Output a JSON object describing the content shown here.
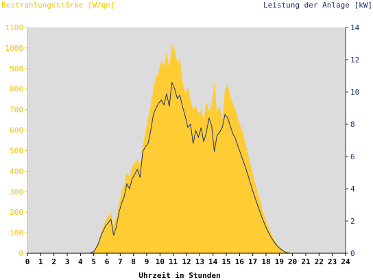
{
  "chart_data": {
    "type": "area",
    "title": "",
    "y_left_label": "Bestrahlungsstärke [W/qm]",
    "y_right_label": "Leistung der Anlage [kW]",
    "xlabel": "Uhrzeit in Stunden",
    "xlim": [
      0,
      24
    ],
    "ylim_left": [
      0,
      1100
    ],
    "ylim_right": [
      0,
      14
    ],
    "x_ticks": [
      "0",
      "1",
      "2",
      "3",
      "4",
      "5",
      "6",
      "7",
      "8",
      "9",
      "10",
      "11",
      "12",
      "13",
      "14",
      "15",
      "16",
      "17",
      "18",
      "19",
      "20",
      "21",
      "22",
      "23",
      "24"
    ],
    "y_left_ticks": [
      "0",
      "100",
      "200",
      "300",
      "400",
      "500",
      "600",
      "700",
      "800",
      "900",
      "1000",
      "1100"
    ],
    "y_right_ticks": [
      "0",
      "2",
      "4",
      "6",
      "8",
      "10",
      "12",
      "14"
    ],
    "colors": {
      "background": "#dcdcdc",
      "irradiance": "#ffcc33",
      "power": "#1a2f6e",
      "left_text": "#f5c400",
      "right_text": "#1a2f6e"
    },
    "grid": false,
    "series": [
      {
        "name": "Bestrahlungsstärke [W/qm]",
        "axis": "left",
        "style": "area",
        "x": [
          0,
          4.6,
          5.0,
          5.3,
          5.6,
          5.9,
          6.1,
          6.3,
          6.5,
          6.7,
          6.9,
          7.1,
          7.3,
          7.5,
          7.7,
          7.9,
          8.1,
          8.3,
          8.5,
          8.7,
          8.9,
          9.1,
          9.3,
          9.5,
          9.7,
          9.9,
          10.1,
          10.3,
          10.5,
          10.7,
          10.9,
          11.1,
          11.3,
          11.5,
          11.7,
          11.9,
          12.1,
          12.3,
          12.5,
          12.7,
          12.9,
          13.1,
          13.3,
          13.5,
          13.7,
          13.9,
          14.1,
          14.3,
          14.5,
          14.7,
          14.9,
          15.1,
          15.3,
          15.5,
          15.7,
          15.9,
          16.2,
          16.5,
          16.8,
          17.1,
          17.4,
          17.7,
          18.0,
          18.3,
          18.6,
          18.9,
          19.2,
          19.5,
          19.8,
          20.1,
          20.4,
          24
        ],
        "y": [
          0,
          0,
          10,
          45,
          110,
          160,
          180,
          200,
          130,
          175,
          240,
          300,
          330,
          390,
          370,
          420,
          440,
          460,
          430,
          520,
          590,
          660,
          720,
          800,
          860,
          880,
          940,
          910,
          980,
          900,
          1020,
          990,
          930,
          950,
          840,
          780,
          810,
          750,
          700,
          720,
          680,
          700,
          650,
          740,
          690,
          720,
          840,
          680,
          720,
          650,
          800,
          820,
          770,
          730,
          700,
          650,
          600,
          520,
          440,
          360,
          290,
          220,
          160,
          110,
          70,
          40,
          20,
          8,
          3,
          0,
          0,
          0
        ]
      },
      {
        "name": "Leistung der Anlage [kW]",
        "axis": "right",
        "style": "line",
        "x": [
          0,
          4.7,
          5.0,
          5.3,
          5.6,
          5.9,
          6.1,
          6.3,
          6.5,
          6.7,
          6.9,
          7.1,
          7.3,
          7.5,
          7.7,
          7.9,
          8.1,
          8.3,
          8.5,
          8.7,
          8.9,
          9.1,
          9.3,
          9.5,
          9.7,
          9.9,
          10.1,
          10.3,
          10.5,
          10.7,
          10.9,
          11.1,
          11.3,
          11.5,
          11.7,
          11.9,
          12.1,
          12.3,
          12.5,
          12.7,
          12.9,
          13.1,
          13.3,
          13.5,
          13.7,
          13.9,
          14.1,
          14.3,
          14.5,
          14.7,
          14.9,
          15.1,
          15.3,
          15.5,
          15.7,
          15.9,
          16.2,
          16.5,
          16.8,
          17.1,
          17.4,
          17.7,
          18.0,
          18.3,
          18.6,
          18.9,
          19.2,
          19.5,
          19.8,
          20.1,
          20.4,
          24
        ],
        "y": [
          0,
          0,
          0.1,
          0.5,
          1.2,
          1.7,
          1.9,
          2.1,
          1.1,
          1.6,
          2.5,
          3.1,
          3.5,
          4.3,
          4.0,
          4.6,
          4.9,
          5.2,
          4.7,
          6.3,
          6.6,
          6.8,
          7.6,
          8.6,
          9.0,
          9.3,
          9.5,
          9.2,
          9.9,
          9.1,
          10.6,
          10.2,
          9.6,
          9.8,
          9.1,
          8.5,
          7.8,
          8.0,
          6.8,
          7.6,
          7.2,
          7.8,
          6.9,
          7.5,
          8.4,
          7.9,
          6.3,
          7.3,
          7.5,
          7.8,
          8.6,
          8.4,
          7.9,
          7.4,
          7.1,
          6.6,
          5.9,
          5.2,
          4.4,
          3.6,
          2.9,
          2.2,
          1.6,
          1.1,
          0.7,
          0.4,
          0.2,
          0.05,
          0,
          0,
          0,
          0
        ]
      }
    ]
  }
}
